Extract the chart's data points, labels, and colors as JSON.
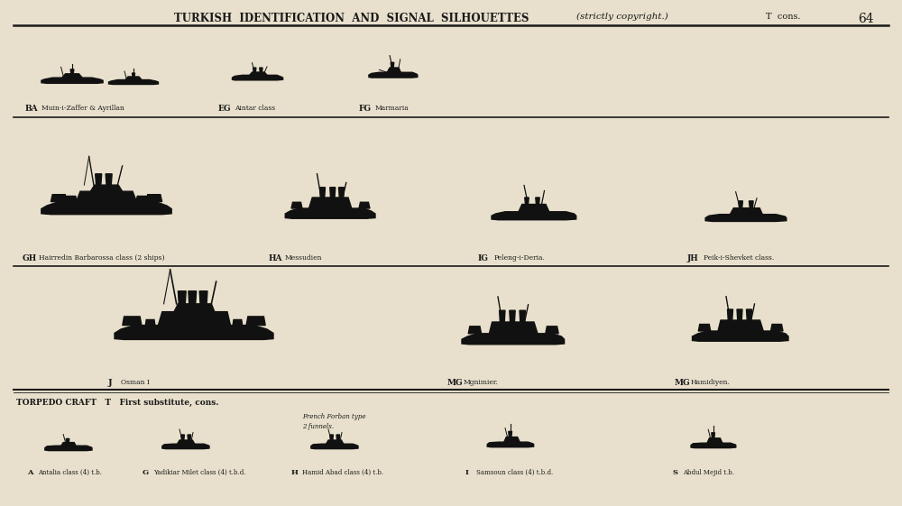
{
  "title": "TURKISH  IDENTIFICATION  AND  SIGNAL  SILHOUETTES",
  "title_italic": "(strictly copyright.)",
  "page_label": "T  cons.",
  "page_number": "64",
  "bg_color": "#e8e0cc",
  "text_color": "#1a1a1a",
  "section_torpedo": "TORPEDO CRAFT   T   First substitute, cons.",
  "row1_labels": [
    {
      "code": "BA",
      "name": "Muin-i-Zaffer & Ayrillan"
    },
    {
      "code": "EG",
      "name": "Aintar class"
    },
    {
      "code": "FG",
      "name": "Marmaria"
    }
  ],
  "row2_labels": [
    {
      "code": "GH",
      "name": "Hairredin Barbarossa class (2 ships)"
    },
    {
      "code": "HA",
      "name": "Messudien"
    },
    {
      "code": "IG",
      "name": "Peleng-i-Deria."
    },
    {
      "code": "JH",
      "name": "Peik-i-Shevket class."
    }
  ],
  "row3_labels": [
    {
      "code": "J",
      "name": "Osman I"
    },
    {
      "code": "MG",
      "name": "Mgnimier."
    },
    {
      "code": "MG",
      "name": "Hamidiyen."
    }
  ],
  "row4_labels": [
    {
      "code": "A",
      "name": "Antalia class (4) t.b."
    },
    {
      "code": "G",
      "name": "Yadikiar Milet class (4) t.b.d."
    },
    {
      "code": "H",
      "name": "Hamid Abad class (4) t.b.",
      "note": "French Forban type\n2 funnels."
    },
    {
      "code": "I",
      "name": "Samsoun class (4) t.b.d."
    },
    {
      "code": "S",
      "name": "Abdul Mejid t.b."
    }
  ]
}
